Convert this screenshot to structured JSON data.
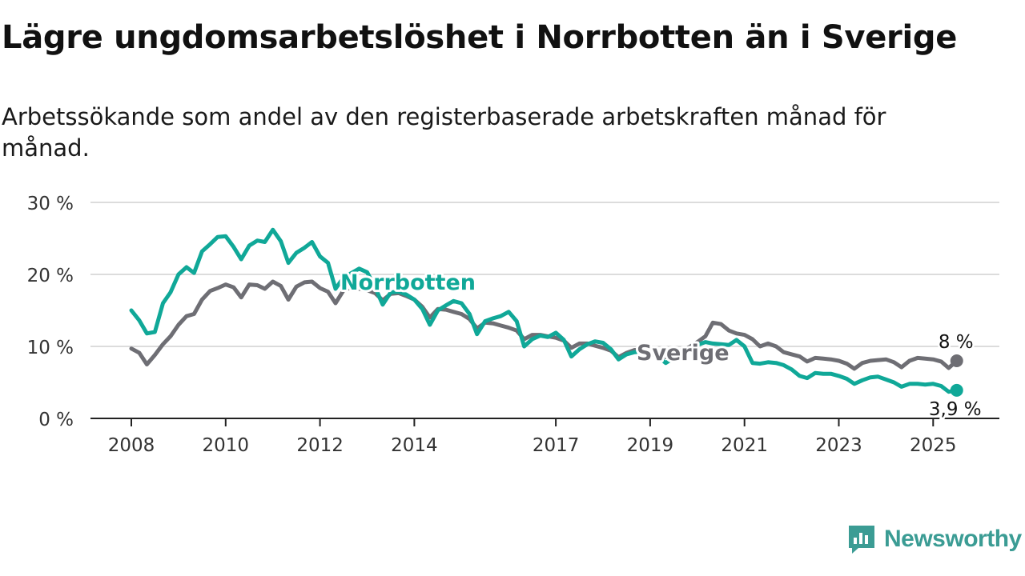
{
  "title": "Lägre ungdomsarbetslöshet i Norrbotten än i Sverige",
  "subtitle": "Arbetssökande som andel av den registerbaserade arbetskraften månad för månad.",
  "brand": "Newsworthy",
  "colors": {
    "norrbotten": "#10a898",
    "sverige": "#6e6e74",
    "grid": "#dcdcdc",
    "axis": "#222222",
    "brand": "#3b9c94"
  },
  "chart_data": {
    "type": "line",
    "ylim": [
      0,
      30
    ],
    "xlim": [
      2008,
      2026.5
    ],
    "grid": true,
    "y_ticks": [
      {
        "value": 0,
        "label": "0 %"
      },
      {
        "value": 10,
        "label": "10 %"
      },
      {
        "value": 20,
        "label": "20 %"
      },
      {
        "value": 30,
        "label": "30 %"
      }
    ],
    "x_ticks": [
      {
        "value": 2008,
        "label": "2008"
      },
      {
        "value": 2010,
        "label": "2010"
      },
      {
        "value": 2012,
        "label": "2012"
      },
      {
        "value": 2014,
        "label": "2014"
      },
      {
        "value": 2017,
        "label": "2017"
      },
      {
        "value": 2019,
        "label": "2019"
      },
      {
        "value": 2021,
        "label": "2021"
      },
      {
        "value": 2023,
        "label": "2023"
      },
      {
        "value": 2025,
        "label": "2025"
      }
    ],
    "series": [
      {
        "name": "Sverige",
        "key": "sverige",
        "end_label": "8 %",
        "points": [
          [
            2008.0,
            9.7
          ],
          [
            2008.17,
            9.1
          ],
          [
            2008.33,
            7.5
          ],
          [
            2008.5,
            8.8
          ],
          [
            2008.67,
            10.3
          ],
          [
            2008.83,
            11.4
          ],
          [
            2009.0,
            13.0
          ],
          [
            2009.17,
            14.2
          ],
          [
            2009.33,
            14.5
          ],
          [
            2009.5,
            16.5
          ],
          [
            2009.67,
            17.7
          ],
          [
            2009.83,
            18.1
          ],
          [
            2010.0,
            18.6
          ],
          [
            2010.17,
            18.2
          ],
          [
            2010.33,
            16.8
          ],
          [
            2010.5,
            18.6
          ],
          [
            2010.67,
            18.5
          ],
          [
            2010.83,
            18.0
          ],
          [
            2011.0,
            19.0
          ],
          [
            2011.17,
            18.4
          ],
          [
            2011.33,
            16.5
          ],
          [
            2011.5,
            18.3
          ],
          [
            2011.67,
            18.9
          ],
          [
            2011.83,
            19.0
          ],
          [
            2012.0,
            18.1
          ],
          [
            2012.17,
            17.6
          ],
          [
            2012.33,
            16.0
          ],
          [
            2012.5,
            17.8
          ],
          [
            2012.67,
            18.2
          ],
          [
            2012.83,
            18.0
          ],
          [
            2013.0,
            17.8
          ],
          [
            2013.17,
            17.4
          ],
          [
            2013.33,
            16.4
          ],
          [
            2013.5,
            17.3
          ],
          [
            2013.67,
            17.4
          ],
          [
            2013.83,
            17.0
          ],
          [
            2014.0,
            16.5
          ],
          [
            2014.17,
            15.5
          ],
          [
            2014.33,
            14.0
          ],
          [
            2014.5,
            15.2
          ],
          [
            2014.67,
            15.1
          ],
          [
            2014.83,
            14.8
          ],
          [
            2015.0,
            14.5
          ],
          [
            2015.17,
            13.8
          ],
          [
            2015.33,
            12.5
          ],
          [
            2015.5,
            13.3
          ],
          [
            2015.67,
            13.2
          ],
          [
            2015.83,
            12.9
          ],
          [
            2016.0,
            12.6
          ],
          [
            2016.17,
            12.2
          ],
          [
            2016.33,
            11.0
          ],
          [
            2016.5,
            11.6
          ],
          [
            2016.67,
            11.6
          ],
          [
            2016.83,
            11.4
          ],
          [
            2017.0,
            11.2
          ],
          [
            2017.17,
            10.8
          ],
          [
            2017.33,
            9.8
          ],
          [
            2017.5,
            10.4
          ],
          [
            2017.67,
            10.4
          ],
          [
            2017.83,
            10.1
          ],
          [
            2018.0,
            9.8
          ],
          [
            2018.17,
            9.4
          ],
          [
            2018.33,
            8.5
          ],
          [
            2018.5,
            9.1
          ],
          [
            2018.67,
            9.5
          ],
          [
            2018.83,
            9.4
          ],
          [
            2019.0,
            9.2
          ],
          [
            2019.17,
            8.9
          ],
          [
            2019.33,
            8.5
          ],
          [
            2019.5,
            9.0
          ],
          [
            2019.67,
            9.5
          ],
          [
            2019.83,
            9.9
          ],
          [
            2020.0,
            10.6
          ],
          [
            2020.17,
            11.4
          ],
          [
            2020.33,
            13.3
          ],
          [
            2020.5,
            13.1
          ],
          [
            2020.67,
            12.2
          ],
          [
            2020.83,
            11.8
          ],
          [
            2021.0,
            11.6
          ],
          [
            2021.17,
            11.0
          ],
          [
            2021.33,
            10.0
          ],
          [
            2021.5,
            10.4
          ],
          [
            2021.67,
            10.0
          ],
          [
            2021.83,
            9.2
          ],
          [
            2022.0,
            8.9
          ],
          [
            2022.17,
            8.6
          ],
          [
            2022.33,
            7.9
          ],
          [
            2022.5,
            8.4
          ],
          [
            2022.67,
            8.3
          ],
          [
            2022.83,
            8.2
          ],
          [
            2023.0,
            8.0
          ],
          [
            2023.17,
            7.6
          ],
          [
            2023.33,
            6.9
          ],
          [
            2023.5,
            7.7
          ],
          [
            2023.67,
            8.0
          ],
          [
            2023.83,
            8.1
          ],
          [
            2024.0,
            8.2
          ],
          [
            2024.17,
            7.8
          ],
          [
            2024.33,
            7.1
          ],
          [
            2024.5,
            8.0
          ],
          [
            2024.67,
            8.4
          ],
          [
            2024.83,
            8.3
          ],
          [
            2025.0,
            8.2
          ],
          [
            2025.17,
            7.9
          ],
          [
            2025.33,
            7.0
          ],
          [
            2025.5,
            8.0
          ]
        ]
      },
      {
        "name": "Norrbotten",
        "key": "norrbotten",
        "end_label": "3,9 %",
        "points": [
          [
            2008.0,
            15.0
          ],
          [
            2008.17,
            13.6
          ],
          [
            2008.33,
            11.8
          ],
          [
            2008.5,
            12.0
          ],
          [
            2008.67,
            16.0
          ],
          [
            2008.83,
            17.5
          ],
          [
            2009.0,
            20.0
          ],
          [
            2009.17,
            21.0
          ],
          [
            2009.33,
            20.2
          ],
          [
            2009.5,
            23.2
          ],
          [
            2009.67,
            24.2
          ],
          [
            2009.83,
            25.2
          ],
          [
            2010.0,
            25.3
          ],
          [
            2010.17,
            23.8
          ],
          [
            2010.33,
            22.1
          ],
          [
            2010.5,
            24.0
          ],
          [
            2010.67,
            24.7
          ],
          [
            2010.83,
            24.5
          ],
          [
            2011.0,
            26.2
          ],
          [
            2011.17,
            24.6
          ],
          [
            2011.33,
            21.6
          ],
          [
            2011.5,
            23.0
          ],
          [
            2011.67,
            23.7
          ],
          [
            2011.83,
            24.5
          ],
          [
            2012.0,
            22.5
          ],
          [
            2012.17,
            21.6
          ],
          [
            2012.33,
            18.0
          ],
          [
            2012.5,
            19.6
          ],
          [
            2012.67,
            20.2
          ],
          [
            2012.83,
            20.8
          ],
          [
            2013.0,
            20.3
          ],
          [
            2013.17,
            18.2
          ],
          [
            2013.33,
            15.8
          ],
          [
            2013.5,
            17.5
          ],
          [
            2013.67,
            17.6
          ],
          [
            2013.83,
            17.2
          ],
          [
            2014.0,
            16.5
          ],
          [
            2014.17,
            15.2
          ],
          [
            2014.33,
            13.0
          ],
          [
            2014.5,
            15.0
          ],
          [
            2014.67,
            15.7
          ],
          [
            2014.83,
            16.3
          ],
          [
            2015.0,
            16.0
          ],
          [
            2015.17,
            14.5
          ],
          [
            2015.33,
            11.7
          ],
          [
            2015.5,
            13.5
          ],
          [
            2015.67,
            13.9
          ],
          [
            2015.83,
            14.2
          ],
          [
            2016.0,
            14.8
          ],
          [
            2016.17,
            13.5
          ],
          [
            2016.33,
            10.0
          ],
          [
            2016.5,
            11.0
          ],
          [
            2016.67,
            11.5
          ],
          [
            2016.83,
            11.3
          ],
          [
            2017.0,
            11.9
          ],
          [
            2017.17,
            10.9
          ],
          [
            2017.33,
            8.6
          ],
          [
            2017.5,
            9.6
          ],
          [
            2017.67,
            10.3
          ],
          [
            2017.83,
            10.7
          ],
          [
            2018.0,
            10.5
          ],
          [
            2018.17,
            9.6
          ],
          [
            2018.33,
            8.2
          ],
          [
            2018.5,
            8.9
          ],
          [
            2018.67,
            9.2
          ],
          [
            2018.83,
            9.3
          ],
          [
            2019.0,
            9.1
          ],
          [
            2019.17,
            8.6
          ],
          [
            2019.33,
            7.7
          ],
          [
            2019.5,
            8.4
          ],
          [
            2019.67,
            9.0
          ],
          [
            2019.83,
            9.6
          ],
          [
            2020.0,
            10.2
          ],
          [
            2020.17,
            10.6
          ],
          [
            2020.33,
            10.4
          ],
          [
            2020.5,
            10.3
          ],
          [
            2020.67,
            10.2
          ],
          [
            2020.83,
            10.9
          ],
          [
            2021.0,
            10.0
          ],
          [
            2021.17,
            7.7
          ],
          [
            2021.33,
            7.6
          ],
          [
            2021.5,
            7.8
          ],
          [
            2021.67,
            7.7
          ],
          [
            2021.83,
            7.4
          ],
          [
            2022.0,
            6.8
          ],
          [
            2022.17,
            5.9
          ],
          [
            2022.33,
            5.6
          ],
          [
            2022.5,
            6.3
          ],
          [
            2022.67,
            6.2
          ],
          [
            2022.83,
            6.2
          ],
          [
            2023.0,
            5.9
          ],
          [
            2023.17,
            5.5
          ],
          [
            2023.33,
            4.8
          ],
          [
            2023.5,
            5.3
          ],
          [
            2023.67,
            5.7
          ],
          [
            2023.83,
            5.8
          ],
          [
            2024.0,
            5.4
          ],
          [
            2024.17,
            5.0
          ],
          [
            2024.33,
            4.4
          ],
          [
            2024.5,
            4.8
          ],
          [
            2024.67,
            4.8
          ],
          [
            2024.83,
            4.7
          ],
          [
            2025.0,
            4.8
          ],
          [
            2025.17,
            4.5
          ],
          [
            2025.33,
            3.7
          ],
          [
            2025.5,
            3.9
          ]
        ]
      }
    ]
  }
}
